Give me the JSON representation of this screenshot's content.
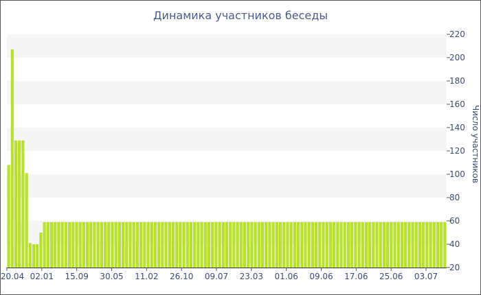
{
  "chart_data": {
    "type": "bar",
    "title": "Динамика участников беседы",
    "ylabel": "Число участников",
    "xlabel": "",
    "ylim": [
      20,
      220
    ],
    "yticks": [
      20,
      40,
      60,
      80,
      100,
      120,
      140,
      160,
      180,
      200,
      220
    ],
    "y_axis_side": "right",
    "x_tick_labels": [
      "20.04",
      "02.01",
      "15.09",
      "30.05",
      "11.02",
      "26.10",
      "09.07",
      "23.03",
      "01.06",
      "09.06",
      "17.06",
      "25.06",
      "03.07"
    ],
    "grid": "alternating horizontal bands",
    "colors": {
      "bar": "#b8e22a",
      "band": "#f5f5f5",
      "text": "#3a4a70",
      "title": "#4a5a8a"
    },
    "values": [
      108,
      207,
      129,
      129,
      129,
      101,
      41,
      40,
      40,
      50,
      59,
      59,
      59,
      59,
      59,
      59,
      59,
      59,
      59,
      59,
      59,
      59,
      59,
      59,
      59,
      59,
      59,
      59,
      59,
      59,
      59,
      59,
      59,
      59,
      59,
      59,
      59,
      59,
      59,
      59,
      59,
      59,
      59,
      59,
      59,
      59,
      59,
      59,
      59,
      59,
      59,
      59,
      59,
      59,
      59,
      59,
      59,
      59,
      59,
      59,
      59,
      59,
      59,
      59,
      59,
      59,
      59,
      59,
      59,
      59,
      59,
      59,
      59,
      59,
      59,
      59,
      59,
      59,
      59,
      59,
      59,
      59,
      59,
      59,
      59,
      59,
      59,
      59,
      59,
      59,
      59,
      59,
      59,
      59,
      59,
      59,
      59,
      59,
      59,
      59,
      59,
      59,
      59,
      59,
      59,
      59,
      59,
      59,
      59,
      59,
      59,
      59,
      59,
      59,
      59,
      59,
      59,
      59,
      59,
      59,
      59,
      59,
      59
    ]
  }
}
